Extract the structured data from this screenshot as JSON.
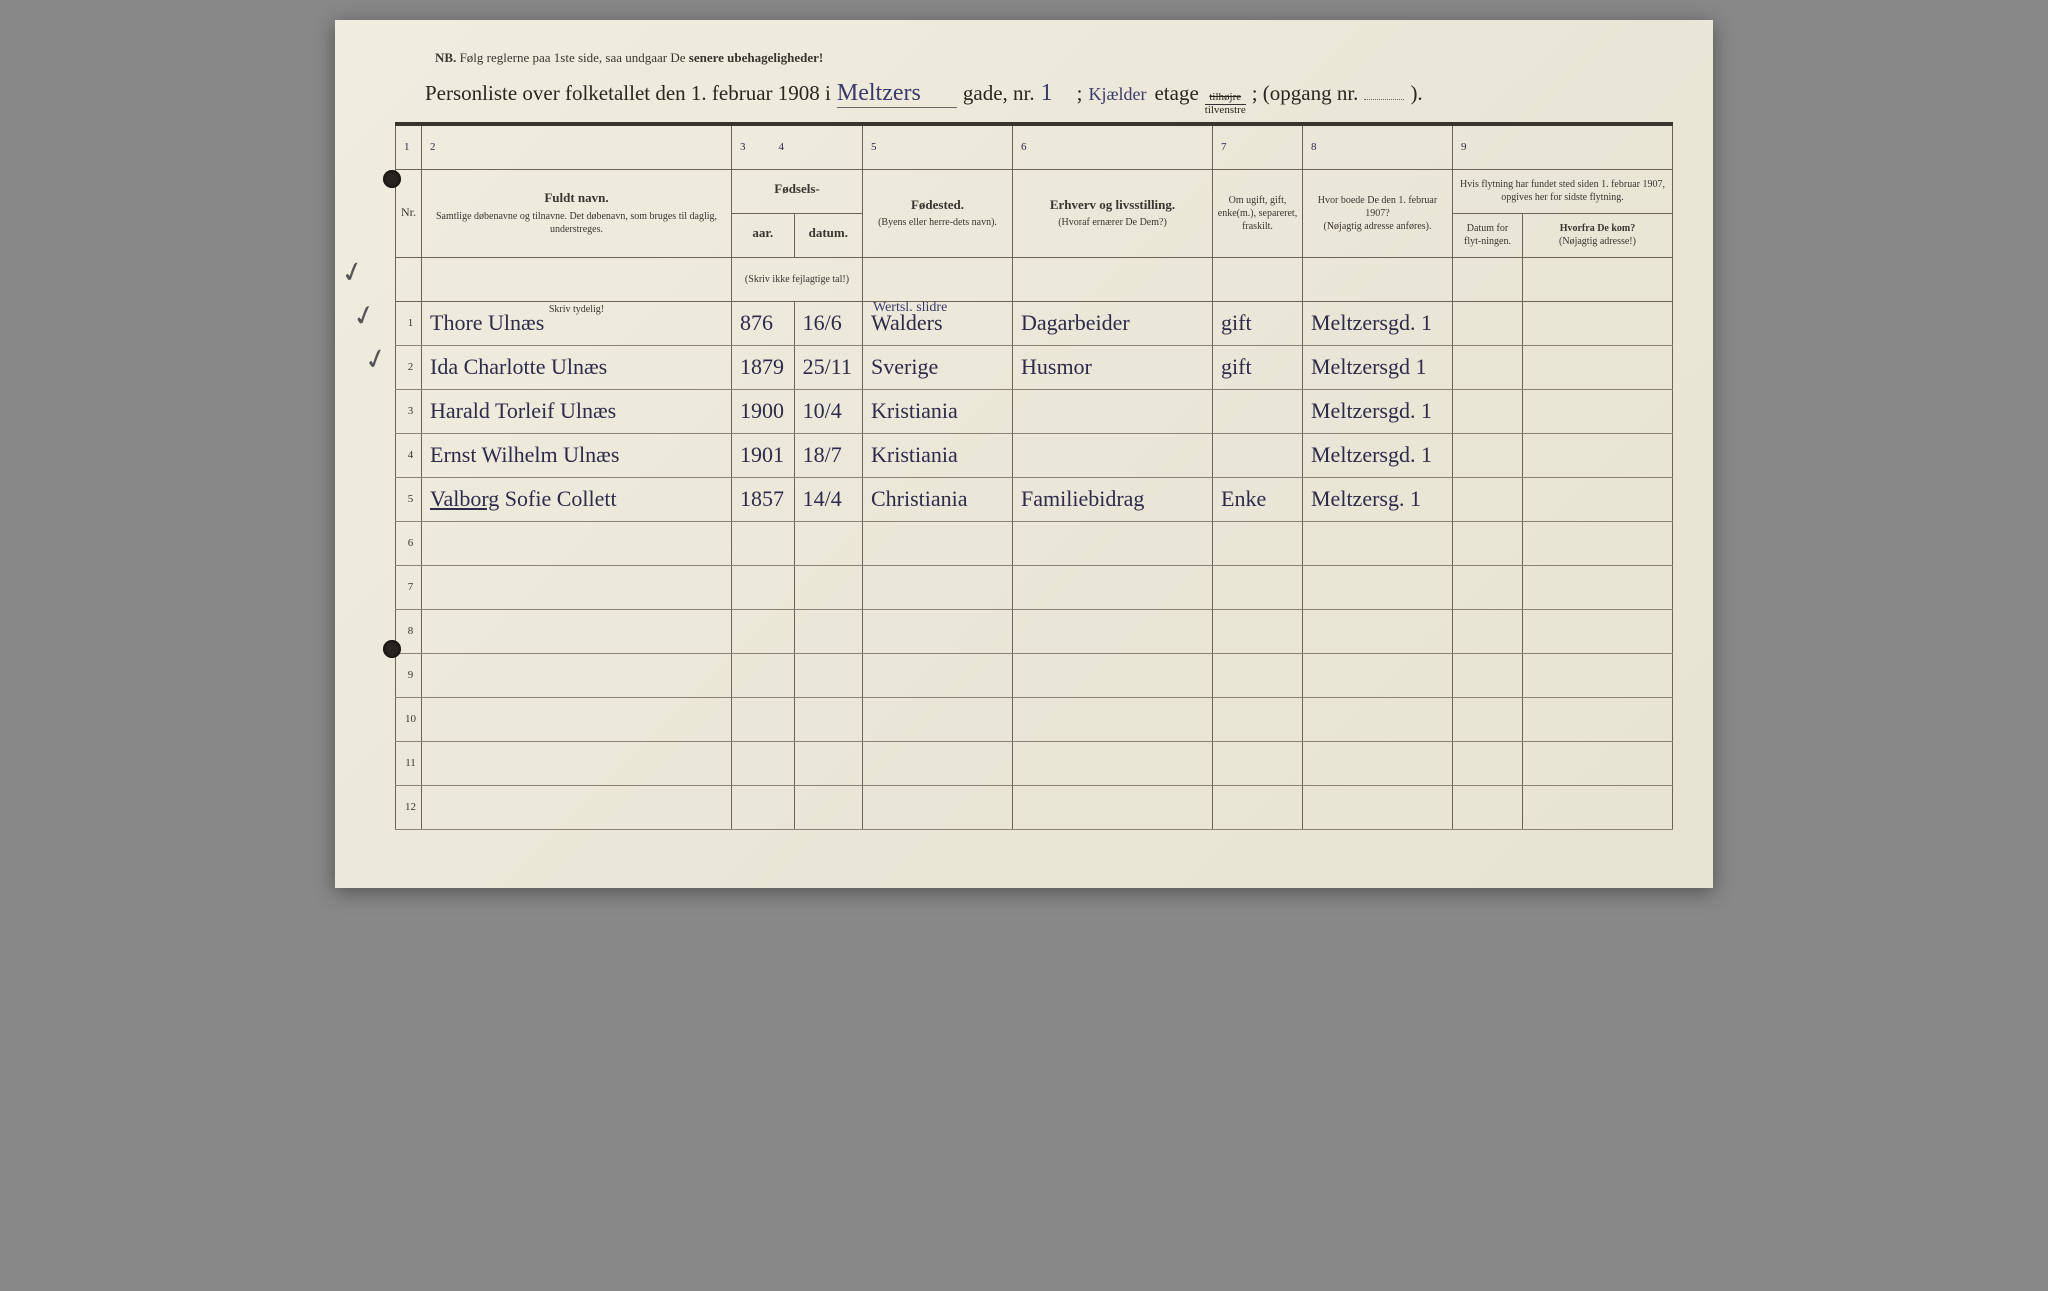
{
  "nb": {
    "prefix": "NB.",
    "text": "Følg reglerne paa 1ste side, saa undgaar De",
    "bold_text": "senere ubehageligheder!"
  },
  "title": {
    "part1": "Personliste over folketallet den 1. februar 1908 i",
    "street_hw": "Meltzers",
    "part2": "gade, nr.",
    "nr_hw": "1",
    "part3": ";",
    "floor_hw": "Kjælder",
    "part4": "etage",
    "frac_top": "tilhøjre",
    "frac_bot": "tilvenstre",
    "part5": "; (opgang nr.",
    "part6": ")."
  },
  "colnums": [
    "1",
    "2",
    "3",
    "4",
    "5",
    "6",
    "7",
    "8",
    "9"
  ],
  "headers": {
    "nr": "Nr.",
    "name_main": "Fuldt navn.",
    "name_sub": "Samtlige døbenavne og tilnavne. Det døbenavn, som bruges til daglig, understreges.",
    "birth_group": "Fødsels-",
    "year": "aar.",
    "date": "datum.",
    "birth_note": "(Skriv ikke fejlagtige tal!)",
    "birthplace_main": "Fødested.",
    "birthplace_sub": "(Byens eller herre-dets navn).",
    "occupation_main": "Erhverv og livsstilling.",
    "occupation_sub": "(Hvoraf ernærer De Dem?)",
    "status": "Om ugift, gift, enke(m.), separeret, fraskilt.",
    "addr1907_main": "Hvor boede De den 1. februar 1907?",
    "addr1907_sub": "(Nøjagtig adresse anføres).",
    "move_group": "Hvis flytning har fundet sted siden 1. februar 1907, opgives her for sidste flytning.",
    "move_date": "Datum for flyt-ningen.",
    "move_from_main": "Hvorfra De kom?",
    "move_from_sub": "(Nøjagtig adresse!)"
  },
  "skriv_tydelig": "Skriv tydelig!",
  "rows": [
    {
      "nr": "1",
      "name": "Thore Ulnæs",
      "year": "876",
      "date": "16/6",
      "birthplace_above": "Wertsl. slidre",
      "birthplace": "Walders",
      "occupation": "Dagarbeider",
      "status": "gift",
      "addr1907": "Meltzersgd. 1"
    },
    {
      "nr": "2",
      "name": "Ida Charlotte Ulnæs",
      "year": "1879",
      "date": "25/11",
      "birthplace": "Sverige",
      "occupation": "Husmor",
      "status": "gift",
      "addr1907": "Meltzersgd 1"
    },
    {
      "nr": "3",
      "name": "Harald Torleif Ulnæs",
      "year": "1900",
      "date": "10/4",
      "birthplace": "Kristiania",
      "occupation": "",
      "status": "",
      "addr1907": "Meltzersgd. 1"
    },
    {
      "nr": "4",
      "name": "Ernst Wilhelm Ulnæs",
      "year": "1901",
      "date": "18/7",
      "birthplace": "Kristiania",
      "occupation": "",
      "status": "",
      "addr1907": "Meltzersgd. 1"
    },
    {
      "nr": "5",
      "name": "Valborg Sofie Collett",
      "year": "1857",
      "date": "14/4",
      "birthplace": "Christiania",
      "occupation": "Familiebidrag",
      "status": "Enke",
      "addr1907": "Meltzersg. 1"
    },
    {
      "nr": "6"
    },
    {
      "nr": "7"
    },
    {
      "nr": "8"
    },
    {
      "nr": "9"
    },
    {
      "nr": "10"
    },
    {
      "nr": "11"
    },
    {
      "nr": "12"
    }
  ],
  "style": {
    "paper_bg": "#ebe7d8",
    "ink_print": "#3a3530",
    "ink_hand": "#2d2a4a",
    "border": "#6a6458"
  }
}
